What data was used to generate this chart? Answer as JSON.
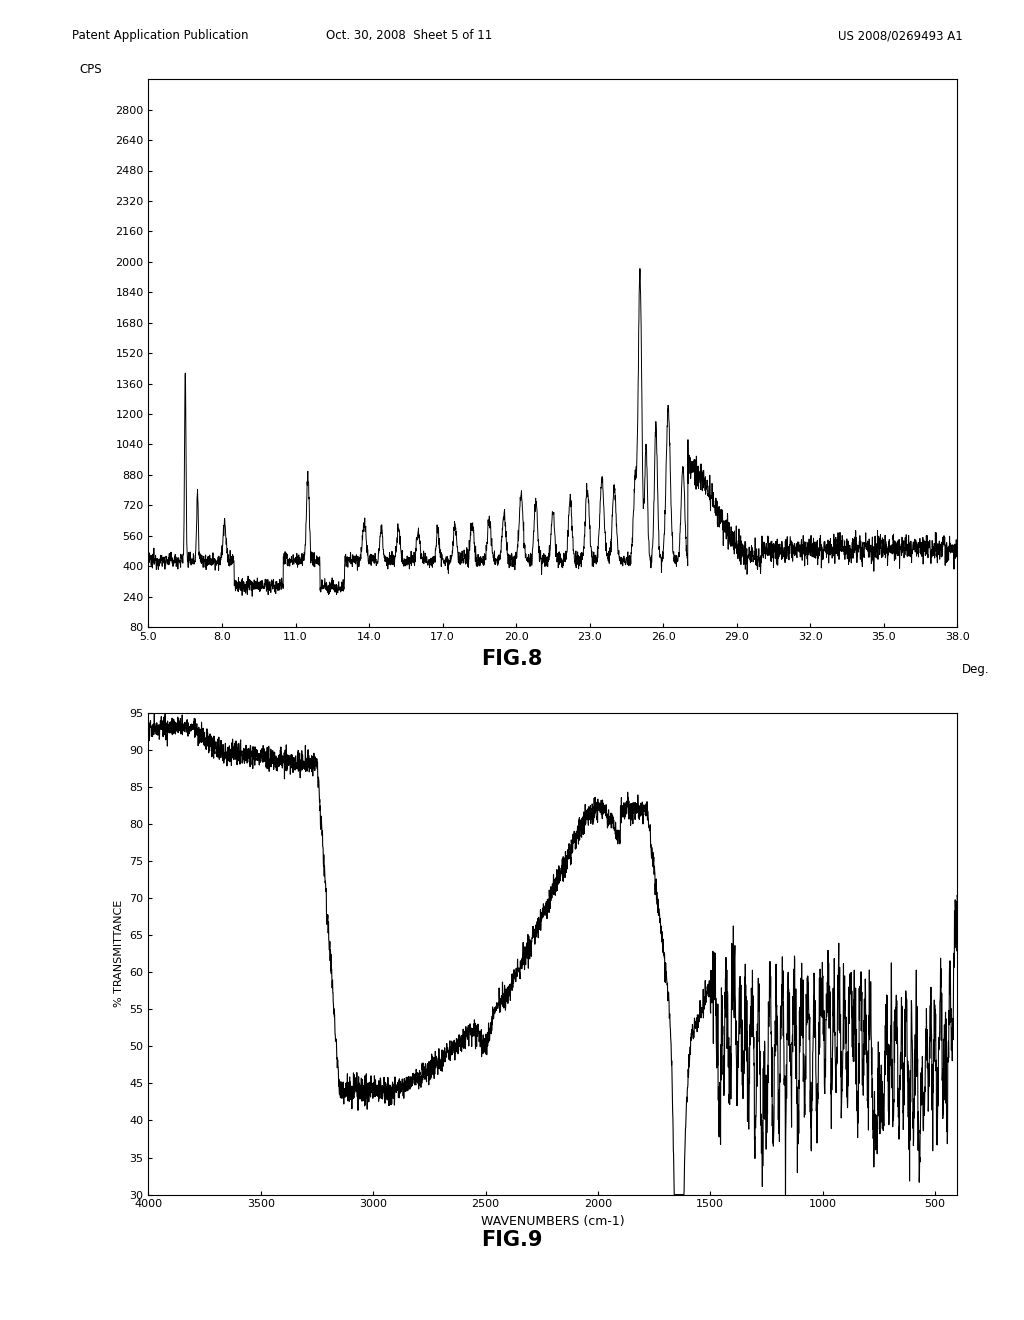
{
  "fig8": {
    "title": "FIG.8",
    "ylabel": "CPS",
    "xlabel_right": "Deg.",
    "xlim": [
      5.0,
      38.0
    ],
    "ylim": [
      80,
      2960
    ],
    "yticks": [
      80,
      240,
      400,
      560,
      720,
      880,
      1040,
      1200,
      1360,
      1520,
      1680,
      1840,
      2000,
      2160,
      2320,
      2480,
      2640,
      2800
    ],
    "xticks": [
      5.0,
      8.0,
      11.0,
      14.0,
      17.0,
      20.0,
      23.0,
      26.0,
      29.0,
      32.0,
      35.0,
      38.0
    ]
  },
  "fig9": {
    "title": "FIG.9",
    "ylabel": "% TRANSMITTANCE",
    "xlabel": "WAVENUMBERS (cm-1)",
    "xlim": [
      4000,
      400
    ],
    "ylim": [
      30,
      95
    ],
    "yticks": [
      30,
      35,
      40,
      45,
      50,
      55,
      60,
      65,
      70,
      75,
      80,
      85,
      90,
      95
    ],
    "xticks": [
      4000,
      3500,
      3000,
      2500,
      2000,
      1500,
      1000,
      500
    ]
  },
  "header_left": "Patent Application Publication",
  "header_center": "Oct. 30, 2008  Sheet 5 of 11",
  "header_right": "US 2008/0269493 A1",
  "line_color": "#000000",
  "background_color": "#ffffff"
}
